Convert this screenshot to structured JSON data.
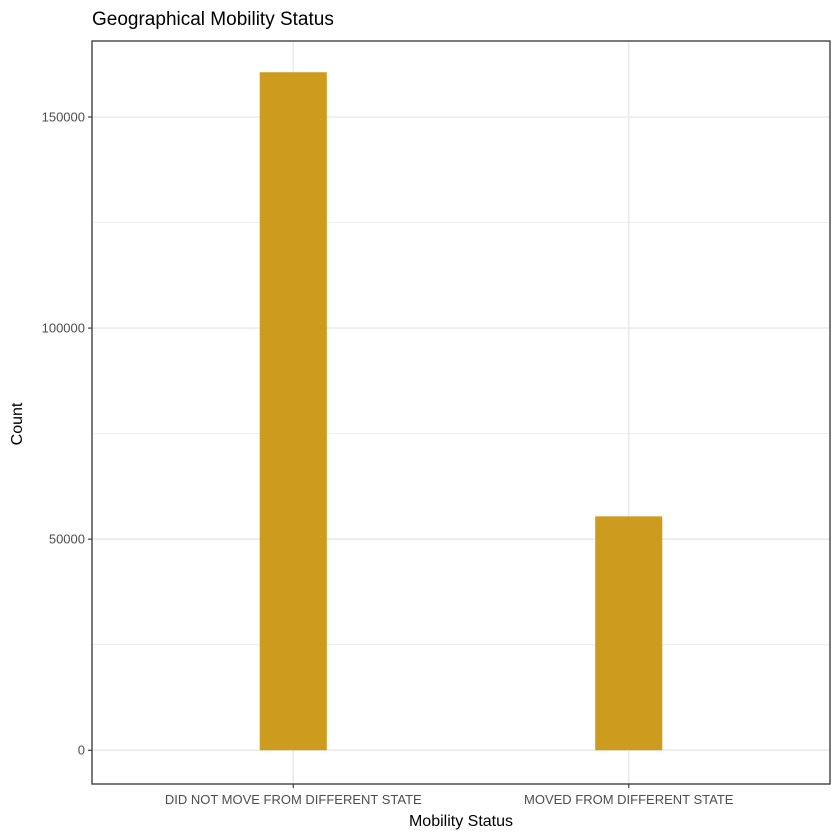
{
  "chart_data": {
    "type": "bar",
    "title": "Geographical Mobility Status",
    "xlabel": "Mobility Status",
    "ylabel": "Count",
    "categories": [
      "DID NOT MOVE FROM DIFFERENT STATE",
      "MOVED FROM DIFFERENT STATE"
    ],
    "values": [
      160600,
      55400
    ],
    "ylim": [
      -8000,
      168000
    ],
    "yticks": [
      0,
      50000,
      100000,
      150000
    ],
    "ytick_labels": [
      "0",
      "50000",
      "100000",
      "150000"
    ],
    "grid": true,
    "bar_color": "#CD9B1D",
    "grid_color": "#ebebeb",
    "panel_border_color": "#333333",
    "legend": "none"
  }
}
